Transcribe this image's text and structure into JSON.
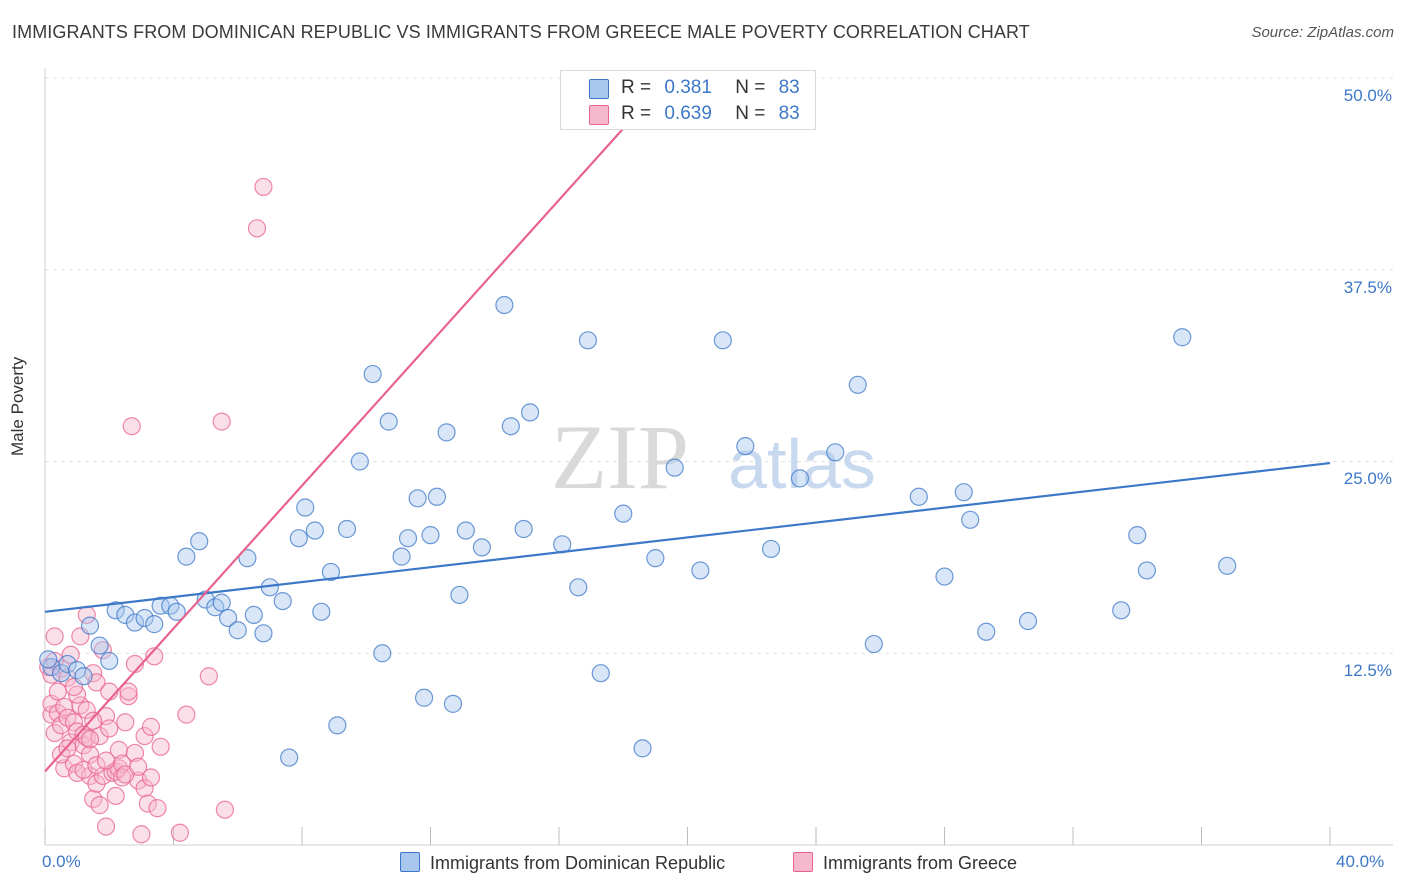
{
  "title": "IMMIGRANTS FROM DOMINICAN REPUBLIC VS IMMIGRANTS FROM GREECE MALE POVERTY CORRELATION CHART",
  "source": "Source: ZipAtlas.com",
  "watermark": {
    "zip": "ZIP",
    "atlas": "atlas"
  },
  "colors": {
    "blue": "#3d78c8",
    "blue_fill": "#a9c7ee",
    "pink": "#e8628e",
    "pink_fill": "#f6b8cc",
    "tick_label": "#3d78c8"
  },
  "legend_top": [
    {
      "r_label": "R =",
      "r_value": "0.381",
      "n_label": "N =",
      "n_value": "83"
    },
    {
      "r_label": "R =",
      "r_value": "0.639",
      "n_label": "N =",
      "n_value": "83"
    }
  ],
  "legend_bottom": [
    {
      "label": "Immigrants from Dominican Republic"
    },
    {
      "label": "Immigrants from Greece"
    }
  ],
  "chart_data": {
    "type": "scatter",
    "title": "IMMIGRANTS FROM DOMINICAN REPUBLIC VS IMMIGRANTS FROM GREECE MALE POVERTY CORRELATION CHART",
    "xlabel": "",
    "ylabel": "Male Poverty",
    "xlim": [
      0,
      40
    ],
    "ylim": [
      0,
      50
    ],
    "x_tick_labels": [
      "0.0%",
      "40.0%"
    ],
    "y_ticks": [
      12.5,
      25.0,
      37.5,
      50.0
    ],
    "y_tick_labels": [
      "12.5%",
      "25.0%",
      "37.5%",
      "50.0%"
    ],
    "grid": true,
    "legend_position": "top-center",
    "series": [
      {
        "name": "Immigrants from Dominican Republic",
        "color": "#3d78c8",
        "trend": {
          "x": [
            0,
            40
          ],
          "y": [
            15.2,
            24.9
          ]
        },
        "points": [
          [
            0.2,
            11.6
          ],
          [
            0.5,
            11.2
          ],
          [
            0.7,
            11.8
          ],
          [
            1.0,
            11.4
          ],
          [
            1.2,
            11.0
          ],
          [
            1.4,
            14.3
          ],
          [
            1.7,
            13.0
          ],
          [
            2.0,
            12.0
          ],
          [
            2.2,
            15.3
          ],
          [
            2.5,
            15.0
          ],
          [
            2.8,
            14.5
          ],
          [
            3.1,
            14.8
          ],
          [
            3.4,
            14.4
          ],
          [
            3.6,
            15.6
          ],
          [
            3.9,
            15.6
          ],
          [
            4.1,
            15.2
          ],
          [
            4.4,
            18.8
          ],
          [
            4.8,
            19.8
          ],
          [
            5.0,
            16.0
          ],
          [
            5.3,
            15.5
          ],
          [
            5.5,
            15.8
          ],
          [
            5.7,
            14.8
          ],
          [
            6.0,
            14.0
          ],
          [
            6.3,
            18.7
          ],
          [
            6.5,
            15.0
          ],
          [
            6.8,
            13.8
          ],
          [
            7.0,
            16.8
          ],
          [
            7.4,
            15.9
          ],
          [
            7.6,
            5.7
          ],
          [
            7.9,
            20.0
          ],
          [
            8.1,
            22.0
          ],
          [
            8.4,
            20.5
          ],
          [
            8.6,
            15.2
          ],
          [
            8.9,
            17.8
          ],
          [
            9.1,
            7.8
          ],
          [
            9.4,
            20.6
          ],
          [
            9.8,
            25.0
          ],
          [
            10.2,
            30.7
          ],
          [
            10.5,
            12.5
          ],
          [
            10.7,
            27.6
          ],
          [
            11.1,
            18.8
          ],
          [
            11.3,
            20.0
          ],
          [
            11.6,
            22.6
          ],
          [
            11.8,
            9.6
          ],
          [
            12.0,
            20.2
          ],
          [
            12.2,
            22.7
          ],
          [
            12.5,
            26.9
          ],
          [
            12.7,
            9.2
          ],
          [
            12.9,
            16.3
          ],
          [
            13.1,
            20.5
          ],
          [
            13.6,
            19.4
          ],
          [
            14.3,
            35.2
          ],
          [
            14.5,
            27.3
          ],
          [
            14.9,
            20.6
          ],
          [
            15.1,
            28.2
          ],
          [
            16.1,
            19.6
          ],
          [
            16.6,
            16.8
          ],
          [
            16.9,
            32.9
          ],
          [
            17.3,
            11.2
          ],
          [
            18.0,
            21.6
          ],
          [
            18.6,
            6.3
          ],
          [
            19.0,
            18.7
          ],
          [
            19.6,
            24.6
          ],
          [
            20.4,
            17.9
          ],
          [
            21.1,
            32.9
          ],
          [
            21.8,
            26.0
          ],
          [
            22.6,
            19.3
          ],
          [
            23.5,
            23.9
          ],
          [
            24.6,
            25.6
          ],
          [
            25.3,
            30.0
          ],
          [
            25.8,
            13.1
          ],
          [
            27.2,
            22.7
          ],
          [
            28.0,
            17.5
          ],
          [
            28.6,
            23.0
          ],
          [
            28.8,
            21.2
          ],
          [
            29.3,
            13.9
          ],
          [
            30.6,
            14.6
          ],
          [
            33.5,
            15.3
          ],
          [
            34.0,
            20.2
          ],
          [
            34.3,
            17.9
          ],
          [
            35.4,
            33.1
          ],
          [
            36.8,
            18.2
          ],
          [
            0.1,
            12.1
          ]
        ]
      },
      {
        "name": "Immigrants from Greece",
        "color": "#e8628e",
        "trend": {
          "x": [
            0,
            19.2
          ],
          "y": [
            4.8,
            49.5
          ]
        },
        "points": [
          [
            0.1,
            11.6
          ],
          [
            0.2,
            8.5
          ],
          [
            0.2,
            9.2
          ],
          [
            0.3,
            13.6
          ],
          [
            0.3,
            7.3
          ],
          [
            0.4,
            10.0
          ],
          [
            0.4,
            8.6
          ],
          [
            0.5,
            11.5
          ],
          [
            0.5,
            7.8
          ],
          [
            0.6,
            9.0
          ],
          [
            0.6,
            5.0
          ],
          [
            0.7,
            8.3
          ],
          [
            0.7,
            10.9
          ],
          [
            0.8,
            6.7
          ],
          [
            0.8,
            12.4
          ],
          [
            0.9,
            5.3
          ],
          [
            0.9,
            8.0
          ],
          [
            1.0,
            7.4
          ],
          [
            1.0,
            4.7
          ],
          [
            1.1,
            9.1
          ],
          [
            1.1,
            13.6
          ],
          [
            1.2,
            7.2
          ],
          [
            1.2,
            6.5
          ],
          [
            1.3,
            7.0
          ],
          [
            1.3,
            8.8
          ],
          [
            1.3,
            15.0
          ],
          [
            1.4,
            5.9
          ],
          [
            1.4,
            4.5
          ],
          [
            1.5,
            11.2
          ],
          [
            1.5,
            3.0
          ],
          [
            1.6,
            10.6
          ],
          [
            1.6,
            4.0
          ],
          [
            1.7,
            7.1
          ],
          [
            1.7,
            2.6
          ],
          [
            1.8,
            12.7
          ],
          [
            1.8,
            4.5
          ],
          [
            1.9,
            8.4
          ],
          [
            1.9,
            1.2
          ],
          [
            2.0,
            10.0
          ],
          [
            2.0,
            7.6
          ],
          [
            2.1,
            4.7
          ],
          [
            2.2,
            4.8
          ],
          [
            2.3,
            5.0
          ],
          [
            2.3,
            6.2
          ],
          [
            2.4,
            5.3
          ],
          [
            2.4,
            4.4
          ],
          [
            2.5,
            8.0
          ],
          [
            2.6,
            9.7
          ],
          [
            2.6,
            10.0
          ],
          [
            2.7,
            27.3
          ],
          [
            2.8,
            6.0
          ],
          [
            2.8,
            11.8
          ],
          [
            2.9,
            4.2
          ],
          [
            3.0,
            0.7
          ],
          [
            3.1,
            7.1
          ],
          [
            3.1,
            3.7
          ],
          [
            3.2,
            2.7
          ],
          [
            3.3,
            7.7
          ],
          [
            3.4,
            12.3
          ],
          [
            3.5,
            2.4
          ],
          [
            3.6,
            6.4
          ],
          [
            4.2,
            0.8
          ],
          [
            4.4,
            8.5
          ],
          [
            5.1,
            11.0
          ],
          [
            5.5,
            27.6
          ],
          [
            5.6,
            2.3
          ],
          [
            6.6,
            40.2
          ],
          [
            6.8,
            42.9
          ],
          [
            0.2,
            11.1
          ],
          [
            0.5,
            5.9
          ],
          [
            0.7,
            6.3
          ],
          [
            1.0,
            9.8
          ],
          [
            1.2,
            4.9
          ],
          [
            1.4,
            6.9
          ],
          [
            1.6,
            5.2
          ],
          [
            1.9,
            5.5
          ],
          [
            2.2,
            3.2
          ],
          [
            2.5,
            4.6
          ],
          [
            2.9,
            5.1
          ],
          [
            3.3,
            4.4
          ],
          [
            0.3,
            12.0
          ],
          [
            0.9,
            10.3
          ],
          [
            1.5,
            8.1
          ]
        ]
      }
    ]
  }
}
